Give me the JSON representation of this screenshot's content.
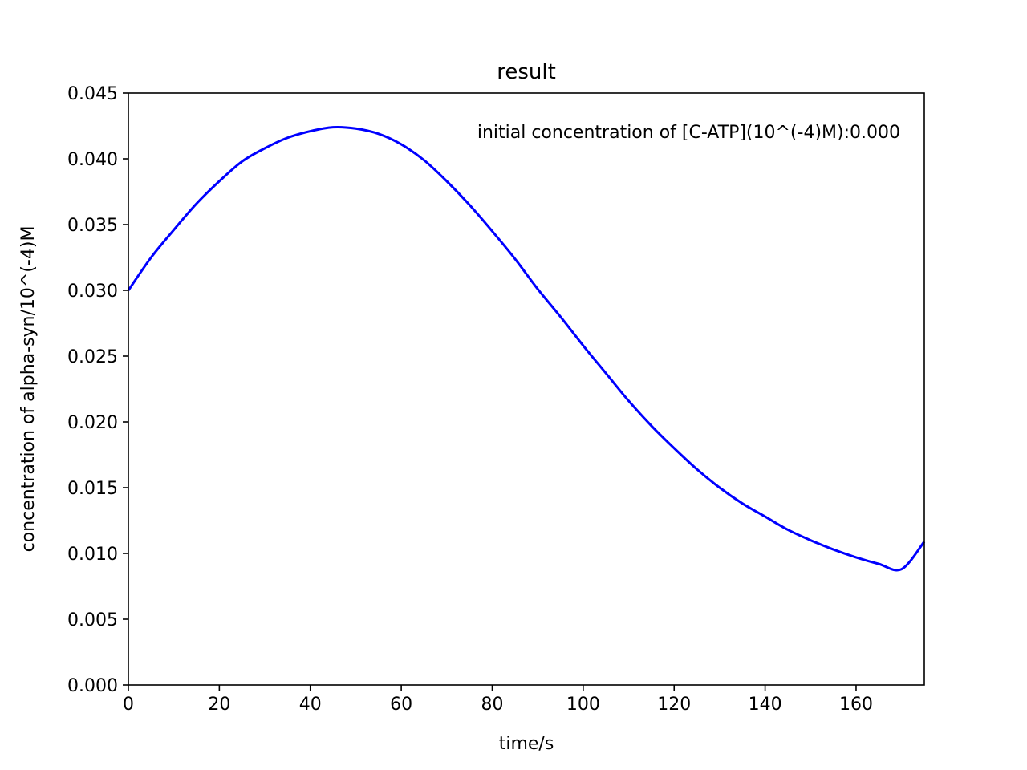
{
  "chart_data": {
    "type": "line",
    "title": "result",
    "xlabel": "time/s",
    "ylabel": "concentration of alpha-syn/10^(-4)M",
    "annotation": "initial concentration of [C-ATP](10^(-4)M):0.000",
    "xlim": [
      0,
      175
    ],
    "ylim": [
      0,
      0.045
    ],
    "xticks": [
      "0",
      "20",
      "40",
      "60",
      "80",
      "100",
      "120",
      "140",
      "160"
    ],
    "yticks": [
      "0.000",
      "0.005",
      "0.010",
      "0.015",
      "0.020",
      "0.025",
      "0.030",
      "0.035",
      "0.040",
      "0.045"
    ],
    "grid": false,
    "series": [
      {
        "color": "#0000ff",
        "x": [
          0,
          5,
          10,
          15,
          20,
          25,
          30,
          35,
          40,
          45,
          50,
          55,
          60,
          65,
          70,
          75,
          80,
          85,
          90,
          95,
          100,
          105,
          110,
          115,
          120,
          125,
          130,
          135,
          140,
          145,
          150,
          155,
          160,
          165,
          170,
          175
        ],
        "y": [
          0.03,
          0.0325,
          0.0346,
          0.0366,
          0.0383,
          0.0398,
          0.0408,
          0.0416,
          0.0421,
          0.0424,
          0.0423,
          0.0419,
          0.0411,
          0.0399,
          0.0383,
          0.0365,
          0.0345,
          0.0324,
          0.0301,
          0.028,
          0.0258,
          0.0237,
          0.0216,
          0.0197,
          0.018,
          0.0164,
          0.015,
          0.0138,
          0.0128,
          0.0118,
          0.011,
          0.0103,
          0.0097,
          0.0092,
          0.0088,
          0.0109
        ]
      }
    ]
  }
}
